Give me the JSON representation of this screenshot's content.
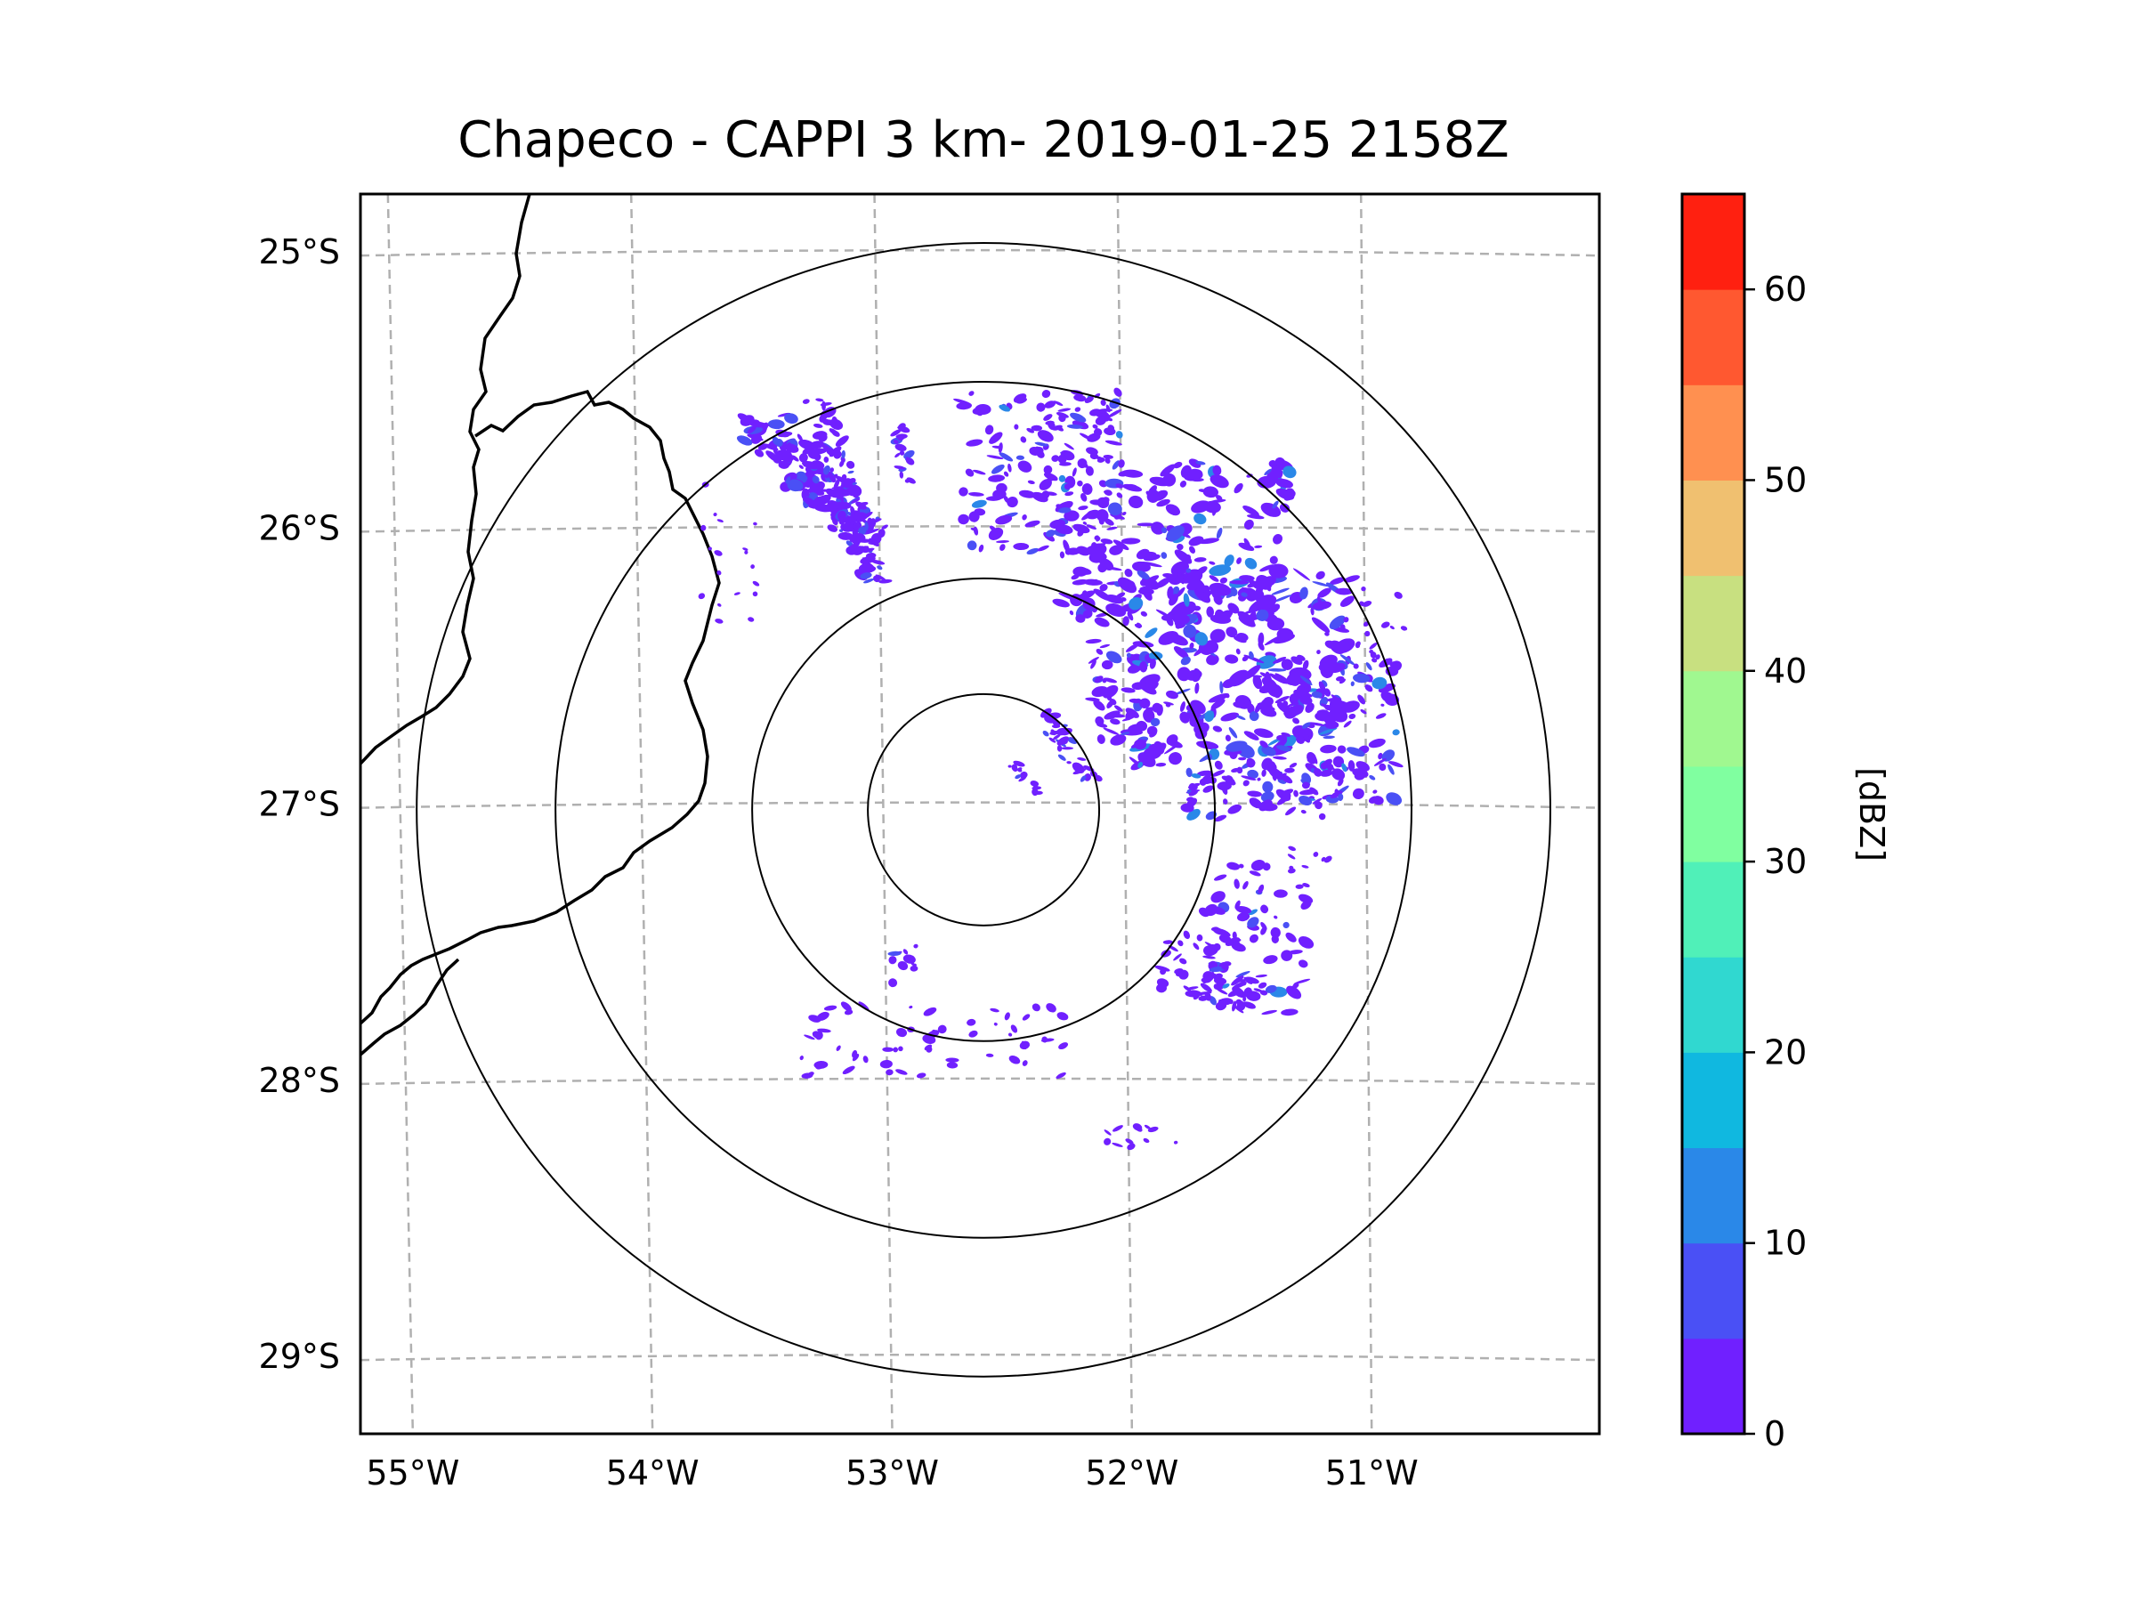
{
  "title": "Chapeco - CAPPI 3 km- 2019-01-25 2158Z",
  "map": {
    "lon_range": [
      -55.18,
      -50.05
    ],
    "lat_range": [
      -29.28,
      -24.79
    ],
    "radar_center": {
      "lon": -52.6,
      "lat": -27.02
    },
    "range_rings_deg_radius": [
      0.5,
      1.0,
      1.85,
      2.45
    ],
    "meridians": [
      -55,
      -54,
      -53,
      -52,
      -51
    ],
    "parallels": [
      -25,
      -26,
      -27,
      -28,
      -29
    ],
    "lon_labels": [
      "55°W",
      "54°W",
      "53°W",
      "52°W",
      "51°W"
    ],
    "lat_labels": [
      "25°S",
      "26°S",
      "27°S",
      "28°S",
      "29°S"
    ]
  },
  "colorbar": {
    "label": "[dBZ]",
    "ticks": [
      "0",
      "10",
      "20",
      "30",
      "40",
      "50",
      "60"
    ],
    "tick_values": [
      0,
      10,
      20,
      30,
      40,
      50,
      60
    ],
    "min": 0,
    "max": 65,
    "bins": [
      {
        "from": 0,
        "to": 5,
        "color": "#7020ff"
      },
      {
        "from": 5,
        "to": 10,
        "color": "#4a50f5"
      },
      {
        "from": 10,
        "to": 15,
        "color": "#2a88e8"
      },
      {
        "from": 15,
        "to": 20,
        "color": "#10b8e0"
      },
      {
        "from": 20,
        "to": 25,
        "color": "#30d8d0"
      },
      {
        "from": 25,
        "to": 30,
        "color": "#50f0b8"
      },
      {
        "from": 30,
        "to": 35,
        "color": "#80ffa0"
      },
      {
        "from": 35,
        "to": 40,
        "color": "#a0f890"
      },
      {
        "from": 40,
        "to": 45,
        "color": "#c8e080"
      },
      {
        "from": 45,
        "to": 50,
        "color": "#f0c070"
      },
      {
        "from": 50,
        "to": 55,
        "color": "#ff9050"
      },
      {
        "from": 55,
        "to": 60,
        "color": "#ff5830"
      },
      {
        "from": 60,
        "to": 65,
        "color": "#ff2010"
      }
    ]
  },
  "colors": {
    "echo_main": "#7020ff",
    "echo_light": "#4a50f5",
    "echo_medium": "#2a88e8",
    "grid": "#b0b0b0",
    "border": "#000000"
  }
}
